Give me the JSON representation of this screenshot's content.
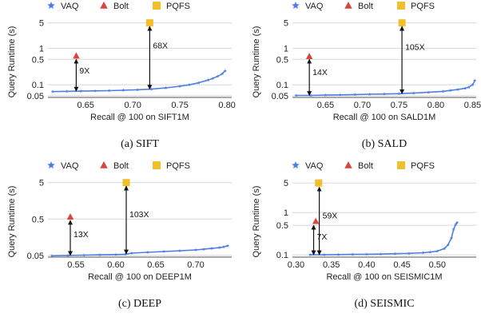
{
  "colors": {
    "vaq": "#4f7fe0",
    "bolt": "#d9453a",
    "pqfs": "#f2bf2c",
    "axis": "#555555",
    "grid": "#d8d8d8",
    "arrow": "#111111"
  },
  "legend_labels": {
    "vaq": "VAQ",
    "bolt": "Bolt",
    "pqfs": "PQFS"
  },
  "chart_data": [
    {
      "type": "line",
      "caption": "(a) SIFT",
      "xlabel": "Recall @ 100 on SIFT1M",
      "ylabel": "Query Runtime (s)",
      "y_scale": "log",
      "xlim": [
        0.61,
        0.805
      ],
      "ylim": [
        0.045,
        6
      ],
      "x_ticks": [
        0.65,
        0.7,
        0.75,
        0.8
      ],
      "x_tick_labels": [
        "0.65",
        "0.70",
        "0.75",
        "0.80"
      ],
      "y_ticks": [
        0.05,
        0.1,
        0.5,
        1,
        5
      ],
      "y_tick_labels": [
        "0.05",
        "0.1",
        "0.5",
        "1",
        "5"
      ],
      "series": [
        {
          "name": "VAQ",
          "marker": "star",
          "x": [
            0.615,
            0.63,
            0.645,
            0.66,
            0.675,
            0.69,
            0.705,
            0.72,
            0.735,
            0.75,
            0.76,
            0.77,
            0.78,
            0.785,
            0.79,
            0.795,
            0.798
          ],
          "y": [
            0.065,
            0.066,
            0.067,
            0.068,
            0.069,
            0.071,
            0.073,
            0.076,
            0.082,
            0.091,
            0.1,
            0.113,
            0.135,
            0.15,
            0.17,
            0.2,
            0.24
          ]
        },
        {
          "name": "Bolt",
          "marker": "triangle",
          "x": [
            0.64
          ],
          "y": [
            0.62
          ]
        },
        {
          "name": "PQFS",
          "marker": "square",
          "x": [
            0.718
          ],
          "y": [
            5.0
          ]
        }
      ],
      "annotations": [
        {
          "text": "9X",
          "x": 0.64,
          "y_top": 0.5,
          "y_bottom": 0.067
        },
        {
          "text": "68X",
          "x": 0.718,
          "y_top": 4.0,
          "y_bottom": 0.076
        }
      ]
    },
    {
      "type": "line",
      "caption": "(b) SALD",
      "xlabel": "Recall @ 100 on SALD1M",
      "ylabel": "Query Runtime (s)",
      "y_scale": "log",
      "xlim": [
        0.605,
        0.855
      ],
      "ylim": [
        0.045,
        6
      ],
      "x_ticks": [
        0.65,
        0.7,
        0.75,
        0.8,
        0.85
      ],
      "x_tick_labels": [
        "0.65",
        "0.70",
        "0.75",
        "0.80",
        "0.85"
      ],
      "y_ticks": [
        0.05,
        0.1,
        0.5,
        1,
        5
      ],
      "y_tick_labels": [
        "0.05",
        "0.1",
        "0.5",
        "1",
        "5"
      ],
      "series": [
        {
          "name": "VAQ",
          "marker": "star",
          "x": [
            0.61,
            0.63,
            0.65,
            0.67,
            0.69,
            0.71,
            0.73,
            0.75,
            0.77,
            0.79,
            0.81,
            0.82,
            0.83,
            0.84,
            0.845,
            0.85,
            0.853
          ],
          "y": [
            0.051,
            0.051,
            0.052,
            0.053,
            0.054,
            0.055,
            0.056,
            0.057,
            0.059,
            0.062,
            0.066,
            0.07,
            0.074,
            0.08,
            0.086,
            0.1,
            0.13
          ]
        },
        {
          "name": "Bolt",
          "marker": "triangle",
          "x": [
            0.628
          ],
          "y": [
            0.6
          ]
        },
        {
          "name": "PQFS",
          "marker": "square",
          "x": [
            0.754
          ],
          "y": [
            5.0
          ]
        }
      ],
      "annotations": [
        {
          "text": "14X",
          "x": 0.628,
          "y_top": 0.5,
          "y_bottom": 0.051
        },
        {
          "text": "105X",
          "x": 0.754,
          "y_top": 4.0,
          "y_bottom": 0.057
        }
      ]
    },
    {
      "type": "line",
      "caption": "(c) DEEP",
      "xlabel": "Recall @ 100 on DEEP1M",
      "ylabel": "Query Runtime (s)",
      "y_scale": "log",
      "xlim": [
        0.515,
        0.745
      ],
      "ylim": [
        0.045,
        6
      ],
      "x_ticks": [
        0.55,
        0.6,
        0.65,
        0.7
      ],
      "x_tick_labels": [
        "0.55",
        "0.60",
        "0.65",
        "0.70"
      ],
      "y_ticks": [
        0.05,
        0.5,
        5
      ],
      "y_tick_labels": [
        "0.05",
        "0.5",
        "5"
      ],
      "series": [
        {
          "name": "VAQ",
          "marker": "star",
          "x": [
            0.52,
            0.54,
            0.56,
            0.58,
            0.6,
            0.612,
            0.62,
            0.64,
            0.66,
            0.68,
            0.7,
            0.71,
            0.72,
            0.73,
            0.735,
            0.74
          ],
          "y": [
            0.049,
            0.05,
            0.051,
            0.052,
            0.053,
            0.054,
            0.058,
            0.061,
            0.064,
            0.067,
            0.071,
            0.074,
            0.078,
            0.082,
            0.086,
            0.092
          ]
        },
        {
          "name": "Bolt",
          "marker": "triangle",
          "x": [
            0.543
          ],
          "y": [
            0.57
          ]
        },
        {
          "name": "PQFS",
          "marker": "square",
          "x": [
            0.613
          ],
          "y": [
            5.0
          ]
        }
      ],
      "annotations": [
        {
          "text": "13X",
          "x": 0.543,
          "y_top": 0.46,
          "y_bottom": 0.05
        },
        {
          "text": "103X",
          "x": 0.613,
          "y_top": 4.0,
          "y_bottom": 0.055
        }
      ]
    },
    {
      "type": "line",
      "caption": "(d) SEISMIC",
      "xlabel": "Recall @ 100 on SEISMIC1M",
      "ylabel": "Query Runtime (s)",
      "y_scale": "log",
      "xlim": [
        0.295,
        0.555
      ],
      "ylim": [
        0.088,
        6
      ],
      "x_ticks": [
        0.3,
        0.35,
        0.4,
        0.45,
        0.5
      ],
      "x_tick_labels": [
        "0.30",
        "0.35",
        "0.40",
        "0.45",
        "0.50"
      ],
      "y_ticks": [
        0.1,
        0.5,
        1,
        5
      ],
      "y_tick_labels": [
        "0.1",
        "0.5",
        "1",
        "5"
      ],
      "series": [
        {
          "name": "VAQ",
          "marker": "star",
          "x": [
            0.32,
            0.34,
            0.36,
            0.38,
            0.4,
            0.42,
            0.44,
            0.46,
            0.48,
            0.49,
            0.5,
            0.51,
            0.515,
            0.52,
            0.523,
            0.526,
            0.528
          ],
          "y": [
            0.1,
            0.1,
            0.101,
            0.102,
            0.103,
            0.104,
            0.106,
            0.108,
            0.112,
            0.116,
            0.122,
            0.14,
            0.17,
            0.25,
            0.4,
            0.52,
            0.58
          ]
        },
        {
          "name": "Bolt",
          "marker": "triangle",
          "x": [
            0.328
          ],
          "y": [
            0.62
          ]
        },
        {
          "name": "PQFS",
          "marker": "square",
          "x": [
            0.332
          ],
          "y": [
            5.0
          ]
        }
      ],
      "annotations": [
        {
          "text": "7X",
          "x": 0.325,
          "y_top": 0.5,
          "y_bottom": 0.1
        },
        {
          "text": "59X",
          "x": 0.333,
          "y_top": 4.0,
          "y_bottom": 0.1
        }
      ]
    }
  ]
}
